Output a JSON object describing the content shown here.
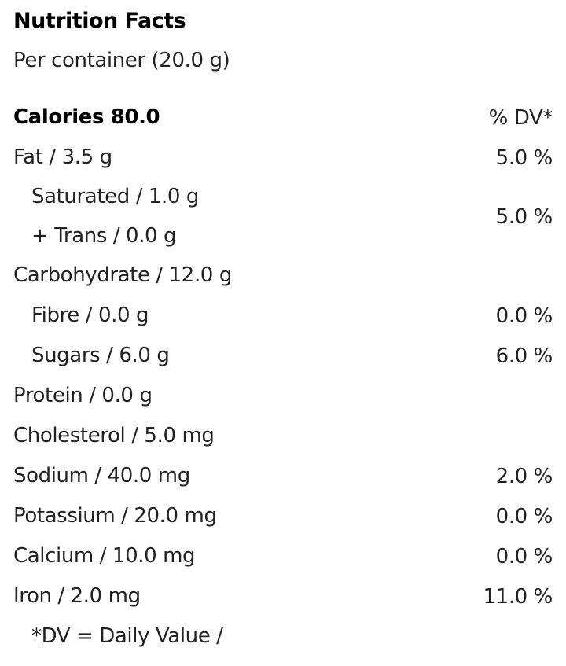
{
  "header": {
    "title": "Nutrition Facts",
    "serving": "Per container (20.0 g)"
  },
  "table": {
    "calories": "Calories 80.0",
    "dv_header": "% DV*",
    "rows": [
      {
        "label": "Fat / 3.5 g",
        "dv": "5.0 %",
        "children": [
          {
            "lines": [
              "Saturated / 1.0 g",
              "+ Trans / 0.0 g"
            ],
            "dv": "5.0 %"
          }
        ]
      },
      {
        "label": "Carbohydrate / 12.0 g",
        "children": [
          {
            "label": "Fibre / 0.0 g",
            "dv": "0.0 %"
          },
          {
            "label": "Sugars / 6.0 g",
            "dv": "6.0 %"
          }
        ]
      },
      {
        "label": "Protein / 0.0 g"
      },
      {
        "label": "Cholesterol / 5.0 mg"
      },
      {
        "label": "Sodium / 40.0 mg",
        "dv": "2.0 %"
      },
      {
        "label": "Potassium / 20.0 mg",
        "dv": "0.0 %"
      },
      {
        "label": "Calcium / 10.0 mg",
        "dv": "0.0 %"
      },
      {
        "label": "Iron / 2.0 mg",
        "dv": "11.0 %"
      }
    ]
  },
  "footnote": "*DV = Daily Value /"
}
